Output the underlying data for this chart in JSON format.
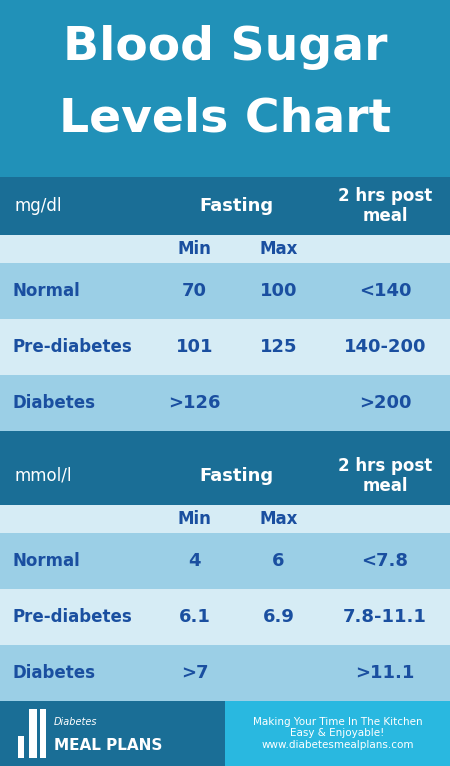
{
  "title_line1": "Blood Sugar",
  "title_line2": "Levels Chart",
  "title_bg": "#2191b8",
  "main_bg": "#1a6e96",
  "row_light": "#9bcfe6",
  "row_dark": "#d6ecf5",
  "subheader_row_bg": "#d6ecf5",
  "text_blue": "#1a4fa0",
  "text_white": "#ffffff",
  "footer_left_bg": "#1a6e96",
  "footer_right_bg": "#29b8e0",
  "table1_unit": "mg/dl",
  "table1_col2": "Fasting",
  "table1_col3": "2 hrs post\nmeal",
  "table1_sub_col1": "Min",
  "table1_sub_col2": "Max",
  "table1_rows": [
    [
      "Normal",
      "70",
      "100",
      "<140"
    ],
    [
      "Pre-diabetes",
      "101",
      "125",
      "140-200"
    ],
    [
      "Diabetes",
      ">126",
      "",
      ">200"
    ]
  ],
  "table2_unit": "mmol/l",
  "table2_col2": "Fasting",
  "table2_col3": "2 hrs post\nmeal",
  "table2_sub_col1": "Min",
  "table2_sub_col2": "Max",
  "table2_rows": [
    [
      "Normal",
      "4",
      "6",
      "<7.8"
    ],
    [
      "Pre-diabetes",
      "6.1",
      "6.9",
      "7.8-11.1"
    ],
    [
      "Diabetes",
      ">7",
      "",
      ">11.1"
    ]
  ],
  "footer_left_text1": "Diabetes",
  "footer_left_text2": "MEAL PLANS",
  "footer_right_text": "Making Your Time In The Kitchen\nEasy & Enjoyable!\nwww.diabetesmealplans.com"
}
